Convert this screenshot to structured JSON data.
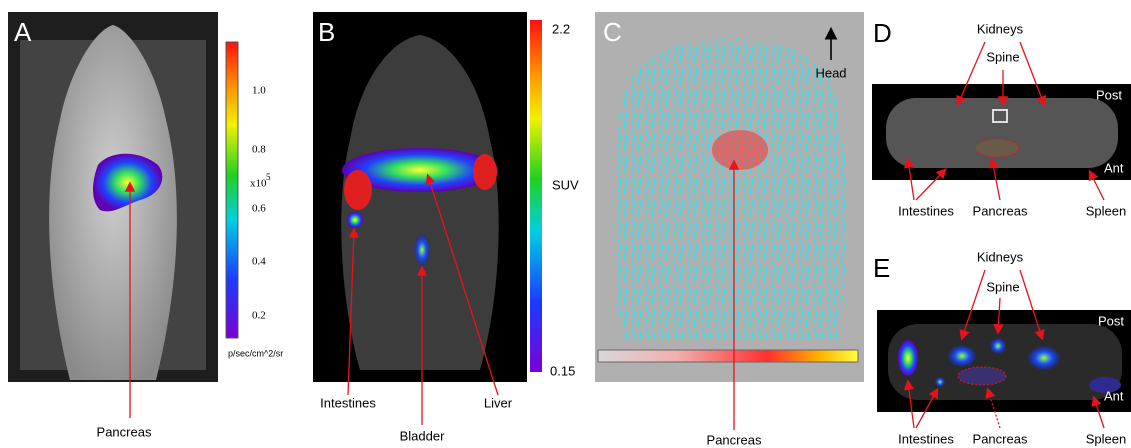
{
  "panels": [
    {
      "letter": "A",
      "colorbar_ticks": [
        "1.0",
        "0.8",
        "0.6",
        "0.4",
        "0.2"
      ],
      "colorbar_scale": "x10",
      "colorbar_power": "5",
      "colorbar_unit": "p/sec/cm^2/sr",
      "labels": [
        "Pancreas"
      ]
    },
    {
      "letter": "B",
      "colorbar_max": "2.2",
      "colorbar_unit": "SUV",
      "colorbar_min": "0.15",
      "labels": [
        "Intestines",
        "Bladder",
        "Liver"
      ]
    },
    {
      "letter": "C",
      "direction": "Head",
      "labels": [
        "Pancreas"
      ]
    },
    {
      "letter": "D",
      "orientation": [
        "Post",
        "Ant"
      ],
      "labels": [
        "Kidneys",
        "Spine",
        "Intestines",
        "Pancreas",
        "Spleen"
      ]
    },
    {
      "letter": "E",
      "orientation": [
        "Post",
        "Ant"
      ],
      "labels": [
        "Kidneys",
        "Spine",
        "Intestines",
        "Pancreas",
        "Spleen"
      ]
    }
  ]
}
